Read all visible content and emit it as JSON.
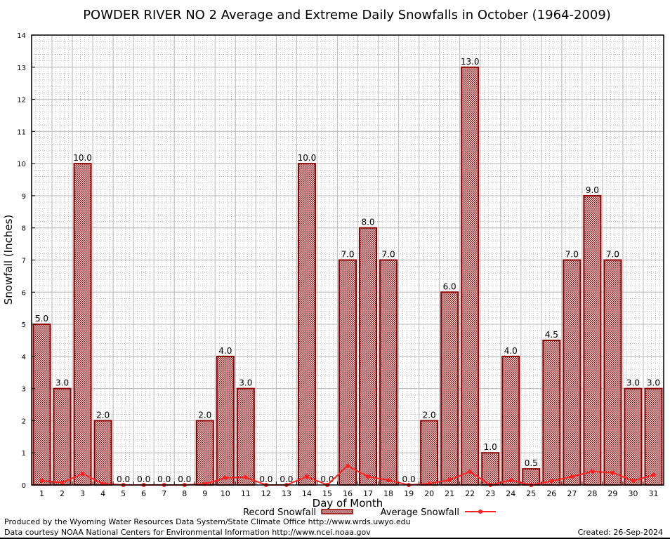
{
  "chart_data": {
    "type": "bar",
    "title": "POWDER RIVER NO 2 Average and Extreme Daily Snowfalls in October (1964-2009)",
    "xlabel": "Day of Month",
    "ylabel": "Snowfall (Inches)",
    "ylim": [
      0,
      14
    ],
    "yticks": [
      0,
      1,
      2,
      3,
      4,
      5,
      6,
      7,
      8,
      9,
      10,
      11,
      12,
      13,
      14
    ],
    "grid": true,
    "legend_placement": "bottom",
    "categories": [
      "1",
      "2",
      "3",
      "4",
      "5",
      "6",
      "7",
      "8",
      "9",
      "10",
      "11",
      "12",
      "13",
      "14",
      "15",
      "16",
      "17",
      "18",
      "19",
      "20",
      "21",
      "22",
      "23",
      "24",
      "25",
      "26",
      "27",
      "28",
      "29",
      "30",
      "31"
    ],
    "series": [
      {
        "name": "Record Snowfall",
        "type": "bar",
        "color": "#a00000",
        "values": [
          5.0,
          3.0,
          10.0,
          2.0,
          0.0,
          0.0,
          0.0,
          0.0,
          2.0,
          4.0,
          3.0,
          0.0,
          0.0,
          10.0,
          0.0,
          7.0,
          8.0,
          7.0,
          0.0,
          2.0,
          6.0,
          13.0,
          1.0,
          4.0,
          0.5,
          4.5,
          7.0,
          9.0,
          7.0,
          3.0,
          3.0
        ],
        "labels": [
          "5.0",
          "3.0",
          "10.0",
          "2.0",
          "0.0",
          "0.0",
          "0.0",
          "0.0",
          "2.0",
          "4.0",
          "3.0",
          "0.0",
          "0.0",
          "10.0",
          "0.0",
          "7.0",
          "8.0",
          "7.0",
          "0.0",
          "2.0",
          "6.0",
          "13.0",
          "1.0",
          "4.0",
          "0.5",
          "4.5",
          "7.0",
          "9.0",
          "7.0",
          "3.0",
          "3.0"
        ]
      },
      {
        "name": "Average Snowfall",
        "type": "line",
        "color": "#ff2020",
        "values": [
          0.13,
          0.07,
          0.35,
          0.04,
          0,
          0,
          0,
          0,
          0.03,
          0.22,
          0.24,
          0,
          0,
          0.26,
          0,
          0.59,
          0.26,
          0.15,
          0,
          0.04,
          0.16,
          0.41,
          0,
          0.15,
          0,
          0.12,
          0.26,
          0.42,
          0.38,
          0.13,
          0.31
        ]
      }
    ]
  },
  "footer": {
    "produced_by": "Produced by the Wyoming Water Resources Data System/State Climate Office http://www.wrds.uwyo.edu",
    "courtesy": "Data courtesy NOAA National Centers for Environmental Information http://www.ncei.noaa.gov",
    "created": "Created: 26-Sep-2024"
  }
}
